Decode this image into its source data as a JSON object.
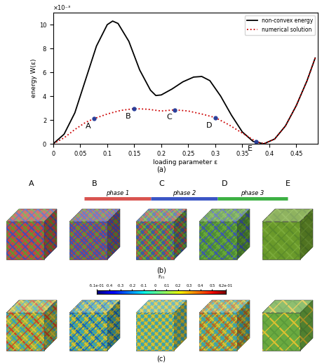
{
  "chart_data": {
    "type": "line",
    "x_label": "loading parameter ε",
    "y_label": "energy W(ε)",
    "axis_multiplier": "×10⁻³",
    "panel": "(a)",
    "xlim": [
      0,
      0.49
    ],
    "ylim": [
      0,
      11
    ],
    "xticks": [
      0,
      0.05,
      0.1,
      0.15,
      0.2,
      0.25,
      0.3,
      0.35,
      0.4,
      0.45
    ],
    "yticks": [
      0,
      2,
      4,
      6,
      8,
      10
    ],
    "legend": "upper right",
    "series": [
      {
        "name": "non-convex energy",
        "color": "#000000",
        "line_style": "solid",
        "x": [
          0,
          0.02,
          0.04,
          0.06,
          0.08,
          0.1,
          0.11,
          0.12,
          0.14,
          0.16,
          0.18,
          0.19,
          0.2,
          0.22,
          0.24,
          0.26,
          0.275,
          0.29,
          0.31,
          0.33,
          0.35,
          0.37,
          0.39,
          0.41,
          0.43,
          0.45,
          0.47,
          0.485
        ],
        "values": [
          0,
          0.8,
          2.6,
          5.4,
          8.2,
          10.0,
          10.3,
          10.1,
          8.6,
          6.2,
          4.5,
          4.05,
          4.1,
          4.6,
          5.2,
          5.6,
          5.65,
          5.3,
          4.0,
          2.4,
          1.0,
          0.2,
          0.0,
          0.4,
          1.5,
          3.2,
          5.3,
          7.2
        ]
      },
      {
        "name": "numerical solution",
        "color": "#cc0000",
        "line_style": "dotted",
        "x": [
          0,
          0.02,
          0.04,
          0.06,
          0.075,
          0.1,
          0.125,
          0.15,
          0.175,
          0.2,
          0.225,
          0.25,
          0.275,
          0.3,
          0.325,
          0.35,
          0.375,
          0.39,
          0.41,
          0.43,
          0.45,
          0.47,
          0.485
        ],
        "values": [
          0,
          0.5,
          1.2,
          1.8,
          2.1,
          2.5,
          2.8,
          2.95,
          2.9,
          2.75,
          2.85,
          2.75,
          2.5,
          2.2,
          1.6,
          0.9,
          0.2,
          0.0,
          0.4,
          1.5,
          3.2,
          5.3,
          7.2
        ]
      }
    ],
    "annotations": [
      {
        "text": "A",
        "x": 0.075,
        "y": 2.1
      },
      {
        "text": "B",
        "x": 0.15,
        "y": 2.95
      },
      {
        "text": "C",
        "x": 0.225,
        "y": 2.85
      },
      {
        "text": "D",
        "x": 0.3,
        "y": 2.2
      },
      {
        "text": "E",
        "x": 0.375,
        "y": 0.2
      }
    ]
  },
  "cube_columns": [
    "A",
    "B",
    "C",
    "D",
    "E"
  ],
  "phases": [
    {
      "name": "phase 1",
      "color": "#d9534f"
    },
    {
      "name": "phase 2",
      "color": "#3a55c5"
    },
    {
      "name": "phase 3",
      "color": "#3cb043"
    }
  ],
  "panel_b": "(b)",
  "panel_c": "(c)",
  "colorbar": {
    "label": "F₂₁",
    "range": [
      -0.51,
      0.62
    ],
    "ticks": [
      {
        "value": -0.51,
        "label": "-5.1e-01"
      },
      -0.4,
      -0.3,
      -0.2,
      -0.1,
      0,
      0.1,
      0.2,
      0.3,
      0.4,
      0.5,
      {
        "value": 0.62,
        "label": "6.2e-01"
      }
    ]
  }
}
